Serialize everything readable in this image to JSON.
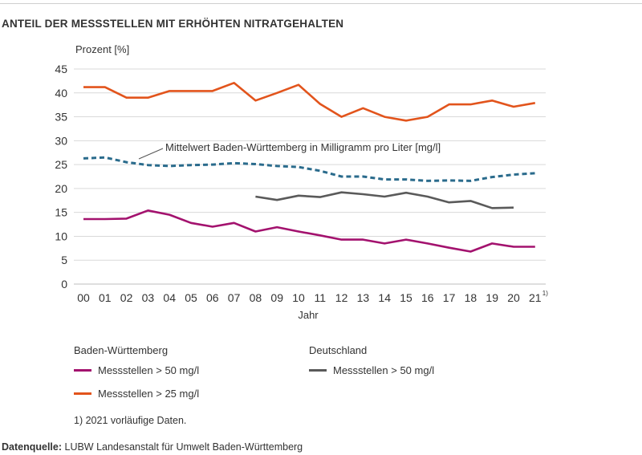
{
  "title": "ANTEIL DER MESSSTELLEN MIT ERHÖHTEN NITRATGEHALTEN",
  "chart_data": {
    "type": "line",
    "ylabel": "Prozent [%]",
    "xlabel": "Jahr",
    "ylim": [
      0,
      45
    ],
    "yticks": [
      0,
      5,
      10,
      15,
      20,
      25,
      30,
      35,
      40,
      45
    ],
    "categories": [
      "00",
      "01",
      "02",
      "03",
      "04",
      "05",
      "06",
      "07",
      "08",
      "09",
      "10",
      "11",
      "12",
      "13",
      "14",
      "15",
      "16",
      "17",
      "18",
      "19",
      "20",
      "21"
    ],
    "last_category_superscript": "1)",
    "grid": "horizontal",
    "annotation": "Mittelwert Baden-Württemberg in Milligramm pro Liter [mg/l]",
    "series": [
      {
        "key": "bw25",
        "name": "Messstellen > 25 mg/l",
        "group": "Baden-Württemberg",
        "color": "#e2541c",
        "style": "solid",
        "values": [
          41.2,
          41.2,
          39.0,
          39.0,
          40.4,
          40.4,
          40.4,
          42.1,
          38.4,
          40.0,
          41.7,
          37.7,
          35.0,
          36.8,
          35.0,
          34.2,
          35.0,
          37.6,
          37.6,
          38.4,
          37.1,
          37.9
        ]
      },
      {
        "key": "mean",
        "name": "Mittelwert Baden-Württemberg in Milligramm pro Liter [mg/l]",
        "color": "#2a6b8c",
        "style": "dashed",
        "values": [
          26.3,
          26.5,
          25.5,
          24.9,
          24.7,
          24.9,
          25.0,
          25.3,
          25.1,
          24.7,
          24.5,
          23.7,
          22.5,
          22.5,
          21.9,
          21.9,
          21.6,
          21.7,
          21.6,
          22.4,
          22.9,
          23.2
        ]
      },
      {
        "key": "de50",
        "name": "Messstellen > 50 mg/l",
        "group": "Deutschland",
        "color": "#5a5a5a",
        "style": "solid",
        "values": [
          null,
          null,
          null,
          null,
          null,
          null,
          null,
          null,
          18.3,
          17.6,
          18.5,
          18.2,
          19.2,
          18.8,
          18.3,
          19.1,
          18.3,
          17.1,
          17.4,
          15.9,
          16.0,
          null
        ]
      },
      {
        "key": "bw50",
        "name": "Messstellen > 50 mg/l",
        "group": "Baden-Württemberg",
        "color": "#a3126e",
        "style": "solid",
        "values": [
          13.6,
          13.6,
          13.7,
          15.4,
          14.5,
          12.8,
          12.0,
          12.8,
          11.0,
          11.9,
          11.0,
          10.2,
          9.3,
          9.3,
          8.5,
          9.3,
          8.5,
          7.6,
          6.8,
          8.5,
          7.8,
          7.8
        ]
      }
    ]
  },
  "legend": {
    "bw_heading": "Baden-Württemberg",
    "de_heading": "Deutschland",
    "bw50_label": "Messstellen > 50 mg/l",
    "bw25_label": "Messstellen > 25 mg/l",
    "de50_label": "Messstellen > 50 mg/l",
    "colors": {
      "bw50": "#a3126e",
      "bw25": "#e2541c",
      "de50": "#5a5a5a"
    }
  },
  "footnote": "1) 2021 vorläufige Daten.",
  "source": {
    "label": "Datenquelle:",
    "text": " LUBW Landesanstalt für Umwelt Baden-Württemberg"
  }
}
